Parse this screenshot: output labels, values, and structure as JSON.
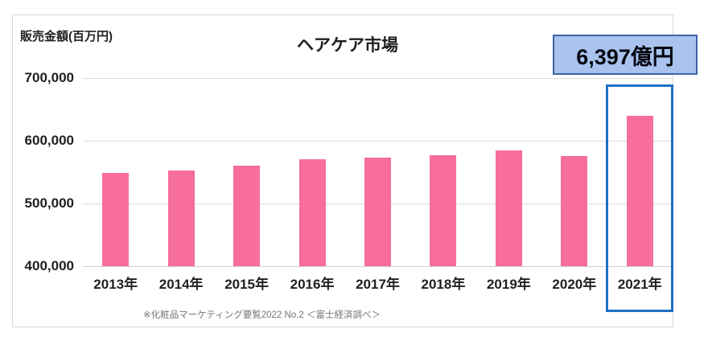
{
  "chart": {
    "unit_label": "販売金額(百万円)",
    "title": "ヘアケア市場",
    "callout_text": "6,397億円",
    "footnote": "※化粧品マーケティング要覧2022 No.2 ＜富士経済調べ＞",
    "colors": {
      "bar": "#f76e9e",
      "gridline": "#dadada",
      "highlight_border": "#1f6fc5",
      "callout_fill": "#a9c3ee",
      "callout_border": "#3f63a8",
      "footnote_text": "#757575"
    }
  },
  "chart_data": {
    "type": "bar",
    "title": "ヘアケア市場",
    "ylabel": "販売金額(百万円)",
    "xlabel": "",
    "categories": [
      "2013年",
      "2014年",
      "2015年",
      "2016年",
      "2017年",
      "2018年",
      "2019年",
      "2020年",
      "2021年"
    ],
    "values": [
      549000,
      553000,
      560000,
      570000,
      573000,
      577000,
      585000,
      576000,
      639700
    ],
    "ylim": [
      400000,
      700000
    ],
    "yticks": [
      400000,
      500000,
      600000,
      700000
    ],
    "ytick_labels": [
      "400,000",
      "500,000",
      "600,000",
      "700,000"
    ],
    "grid": true,
    "legend": false,
    "highlighted_category": "2021年",
    "annotation": "6,397億円",
    "source_note": "※化粧品マーケティング要覧2022 No.2 ＜富士経済調べ＞"
  }
}
